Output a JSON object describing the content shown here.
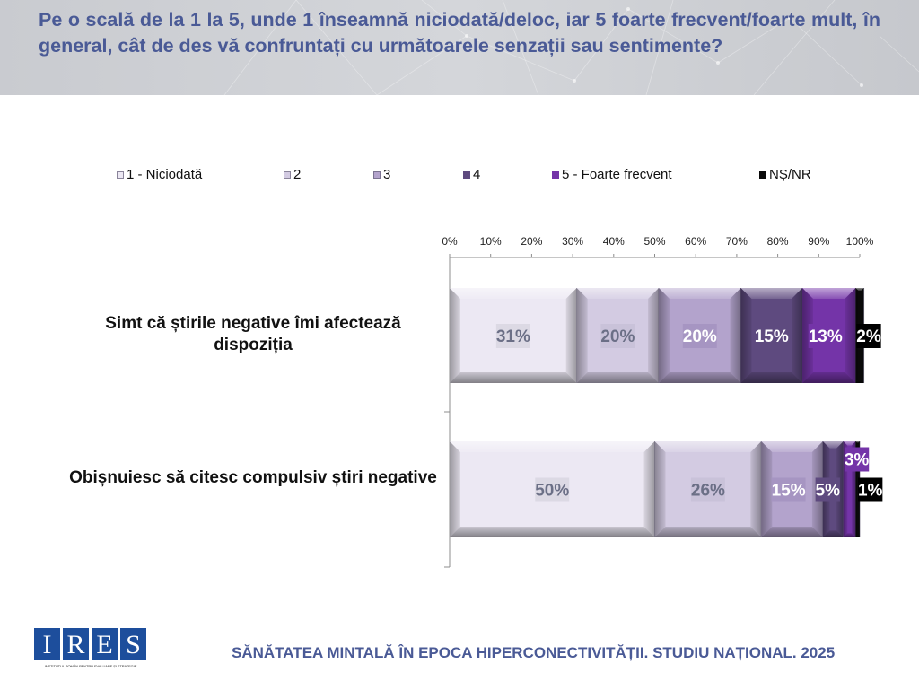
{
  "header": {
    "title": "Pe o scală de la 1 la 5, unde 1 înseamnă niciodată/deloc, iar 5 foarte frecvent/foarte mult, în general, cât de des vă confruntați cu următoarele senzații sau sentimente?"
  },
  "chart_data": {
    "type": "bar",
    "orientation": "horizontal",
    "stacked": true,
    "title": "Pe o scală de la 1 la 5, unde 1 înseamnă niciodată/deloc, iar 5 foarte frecvent/foarte mult, în general, cât de des vă confruntați cu următoarele senzații sau sentimente?",
    "categories": [
      "Simt că știrile negative îmi afectează dispoziția",
      "Obișnuiesc să citesc compulsiv știri negative"
    ],
    "series": [
      {
        "name": "1 - Niciodată",
        "color": "#ece8f3",
        "label_color": "#6b6f86",
        "label_bg": "#dcd9e4",
        "values": [
          31,
          50
        ],
        "labels": [
          "31%",
          "50%"
        ]
      },
      {
        "name": "2",
        "color": "#d3cbe2",
        "label_color": "#6b6f86",
        "label_bg": "#c9c2d9",
        "values": [
          20,
          26
        ],
        "labels": [
          "20%",
          "26%"
        ]
      },
      {
        "name": "3",
        "color": "#b3a3cc",
        "label_color": "#ffffff",
        "label_bg": "#a695c2",
        "values": [
          20,
          15
        ],
        "labels": [
          "20%",
          "15%"
        ]
      },
      {
        "name": "4",
        "color": "#5e4a7f",
        "label_color": "#ffffff",
        "label_bg": "#5e4a7f",
        "values": [
          15,
          5
        ],
        "labels": [
          "15%",
          "5%"
        ]
      },
      {
        "name": "5 - Foarte frecvent",
        "color": "#7434a8",
        "label_color": "#ffffff",
        "label_bg": "#7434a8",
        "values": [
          13,
          3
        ],
        "labels": [
          "13%",
          "3%"
        ]
      },
      {
        "name": "NȘ/NR",
        "color": "#0a0a0a",
        "label_color": "#ffffff",
        "label_bg": "#000000",
        "values": [
          2,
          1
        ],
        "labels": [
          "2%",
          "1%"
        ]
      }
    ],
    "xlim": [
      0,
      100
    ],
    "x_ticks": [
      "0%",
      "10%",
      "20%",
      "30%",
      "40%",
      "50%",
      "60%",
      "70%",
      "80%",
      "90%",
      "100%"
    ],
    "xlabel": "",
    "ylabel": "",
    "legend_position": "top",
    "grid": false
  },
  "footer": {
    "title": "SĂNĂTATEA MINTALĂ ÎN EPOCA HIPERCONECTIVITĂȚII. STUDIU NAȚIONAL. 2025",
    "logo_letters": [
      "I",
      "R",
      "E",
      "S"
    ],
    "logo_subtitle": "INSTITUTUL ROMÂN PENTRU EVALUARE ȘI STRATEGIE"
  }
}
